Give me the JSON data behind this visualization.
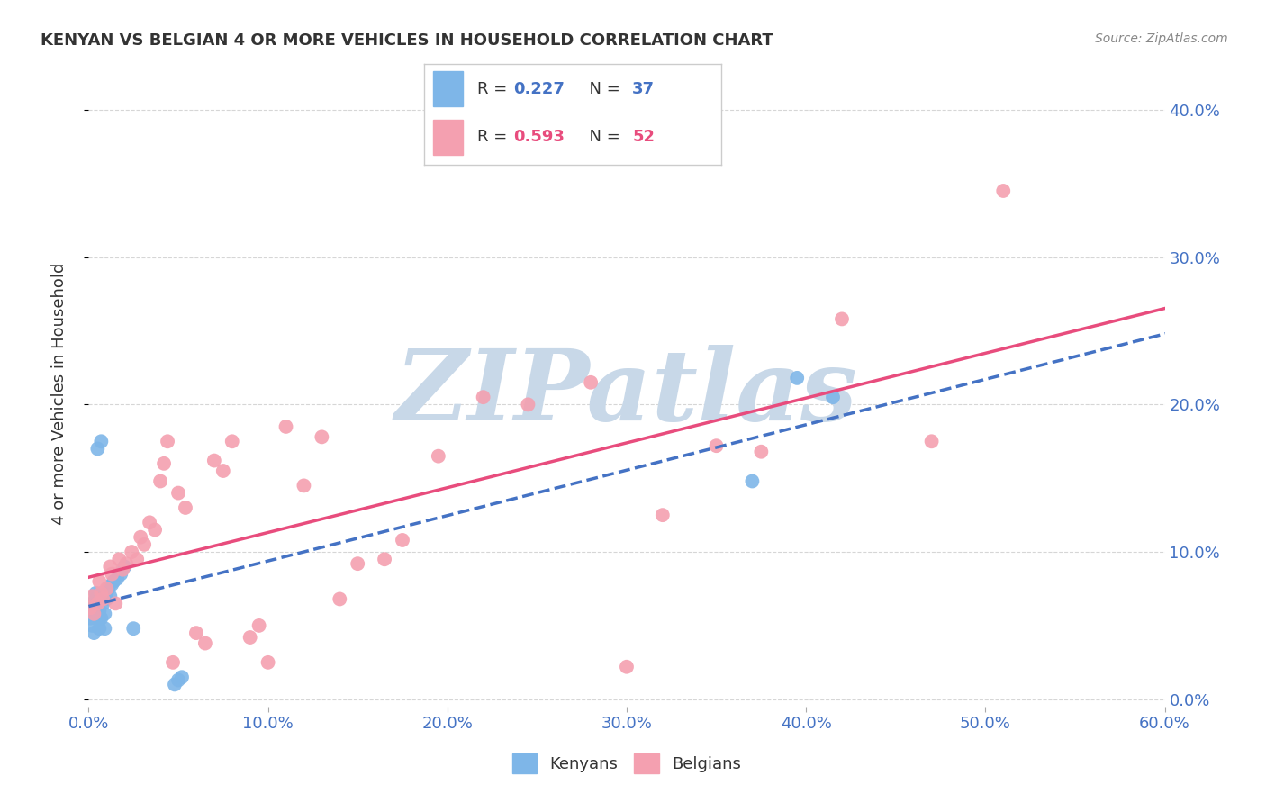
{
  "title": "KENYAN VS BELGIAN 4 OR MORE VEHICLES IN HOUSEHOLD CORRELATION CHART",
  "source": "Source: ZipAtlas.com",
  "ylabel": "4 or more Vehicles in Household",
  "kenyan_R": 0.227,
  "kenyan_N": 37,
  "belgian_R": 0.593,
  "belgian_N": 52,
  "kenyan_color": "#7EB6E8",
  "belgian_color": "#F4A0B0",
  "kenyan_line_color": "#4472C4",
  "belgian_line_color": "#E84C7D",
  "xlim": [
    0.0,
    0.6
  ],
  "ylim": [
    -0.005,
    0.42
  ],
  "xticks": [
    0.0,
    0.1,
    0.2,
    0.3,
    0.4,
    0.5,
    0.6
  ],
  "yticks": [
    0.0,
    0.1,
    0.2,
    0.3,
    0.4
  ],
  "kenyan_x": [
    0.0008,
    0.001,
    0.002,
    0.002,
    0.003,
    0.003,
    0.004,
    0.004,
    0.004,
    0.005,
    0.005,
    0.006,
    0.006,
    0.006,
    0.007,
    0.008,
    0.008,
    0.009,
    0.009,
    0.01,
    0.01,
    0.011,
    0.012,
    0.013,
    0.014,
    0.016,
    0.018,
    0.02,
    0.025,
    0.048,
    0.05,
    0.052,
    0.37,
    0.395,
    0.415,
    0.005,
    0.007
  ],
  "kenyan_y": [
    0.06,
    0.055,
    0.05,
    0.065,
    0.045,
    0.06,
    0.062,
    0.068,
    0.072,
    0.058,
    0.065,
    0.048,
    0.055,
    0.06,
    0.055,
    0.07,
    0.065,
    0.048,
    0.058,
    0.072,
    0.068,
    0.075,
    0.07,
    0.078,
    0.08,
    0.082,
    0.085,
    0.09,
    0.048,
    0.01,
    0.013,
    0.015,
    0.148,
    0.218,
    0.205,
    0.17,
    0.175
  ],
  "belgian_x": [
    0.001,
    0.002,
    0.003,
    0.005,
    0.006,
    0.007,
    0.008,
    0.01,
    0.012,
    0.013,
    0.015,
    0.017,
    0.019,
    0.021,
    0.024,
    0.027,
    0.029,
    0.031,
    0.034,
    0.037,
    0.04,
    0.042,
    0.044,
    0.047,
    0.05,
    0.054,
    0.06,
    0.065,
    0.07,
    0.075,
    0.08,
    0.09,
    0.095,
    0.1,
    0.11,
    0.12,
    0.13,
    0.14,
    0.15,
    0.165,
    0.175,
    0.195,
    0.22,
    0.245,
    0.28,
    0.3,
    0.32,
    0.35,
    0.375,
    0.42,
    0.47,
    0.51
  ],
  "belgian_y": [
    0.062,
    0.07,
    0.058,
    0.065,
    0.08,
    0.072,
    0.068,
    0.075,
    0.09,
    0.085,
    0.065,
    0.095,
    0.088,
    0.092,
    0.1,
    0.095,
    0.11,
    0.105,
    0.12,
    0.115,
    0.148,
    0.16,
    0.175,
    0.025,
    0.14,
    0.13,
    0.045,
    0.038,
    0.162,
    0.155,
    0.175,
    0.042,
    0.05,
    0.025,
    0.185,
    0.145,
    0.178,
    0.068,
    0.092,
    0.095,
    0.108,
    0.165,
    0.205,
    0.2,
    0.215,
    0.022,
    0.125,
    0.172,
    0.168,
    0.258,
    0.175,
    0.345
  ],
  "watermark_color": "#C8D8E8",
  "bg_color": "#FFFFFF",
  "grid_color": "#CCCCCC",
  "tick_label_color": "#4472C4",
  "title_color": "#333333",
  "source_color": "#888888",
  "ylabel_color": "#333333"
}
